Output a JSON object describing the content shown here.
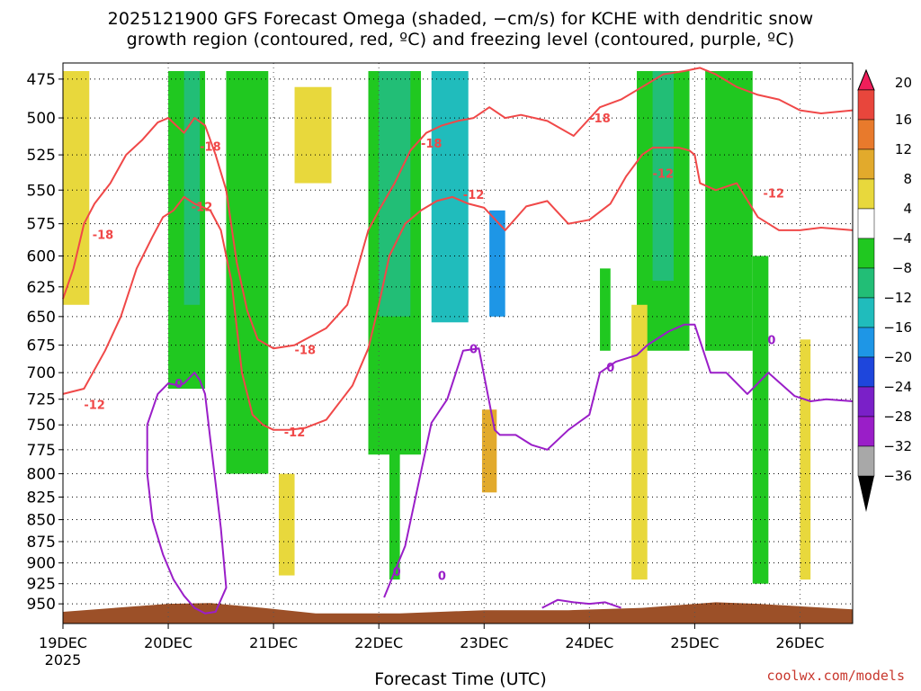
{
  "title_line1": "2025121900 GFS Forecast Omega (shaded, −cm/s) for KCHE with dendritic snow",
  "title_line2": "growth region (contoured, red, ºC) and freezing level (contoured, purple, ºC)",
  "credit": "coolwx.com/models",
  "chart_data": {
    "type": "heatmap",
    "title": "2025121900 GFS Forecast Omega (shaded, −cm/s) for KCHE with dendritic snow growth region (contoured, red, ºC) and freezing level (contoured, purple, ºC)",
    "xlabel": "Forecast Time (UTC)",
    "ylabel": "",
    "x_ticks": [
      "19DEC",
      "20DEC",
      "21DEC",
      "22DEC",
      "23DEC",
      "24DEC",
      "25DEC",
      "26DEC"
    ],
    "x_tick_sub": "2025",
    "xlim_days": [
      0,
      7.5
    ],
    "y_ticks": [
      475,
      500,
      525,
      550,
      575,
      600,
      625,
      650,
      675,
      700,
      725,
      750,
      775,
      800,
      825,
      850,
      875,
      900,
      925,
      950
    ],
    "ylim_hpa": [
      465,
      975
    ],
    "y_axis_log": true,
    "grid": true,
    "colorbar": {
      "labels": [
        "20",
        "16",
        "12",
        "8",
        "4",
        "−4",
        "−8",
        "−12",
        "−16",
        "−20",
        "−24",
        "−28",
        "−32",
        "−36"
      ],
      "colors": [
        "#f01e5a",
        "#e8463c",
        "#e87a2c",
        "#e2aa2c",
        "#e8d83c",
        "#ffffff",
        "#20c820",
        "#22be76",
        "#20bcbc",
        "#1e96e6",
        "#1e46dc",
        "#7a20c8",
        "#9a1ec8",
        "#a8a8a8",
        "#000000"
      ]
    },
    "omega_regions": [
      {
        "level": "-4",
        "day0": 1.0,
        "day1": 1.35,
        "p0": 470,
        "p1": 715
      },
      {
        "level": "-4",
        "day0": 1.55,
        "day1": 1.95,
        "p0": 470,
        "p1": 800
      },
      {
        "level": "-8",
        "day0": 1.15,
        "day1": 1.3,
        "p0": 470,
        "p1": 640
      },
      {
        "level": "-4",
        "day0": 2.9,
        "day1": 3.4,
        "p0": 470,
        "p1": 780
      },
      {
        "level": "-4",
        "day0": 3.55,
        "day1": 3.7,
        "p0": 470,
        "p1": 610
      },
      {
        "level": "-4",
        "day0": 3.1,
        "day1": 3.2,
        "p0": 690,
        "p1": 920
      },
      {
        "level": "-8",
        "day0": 3.0,
        "day1": 3.3,
        "p0": 470,
        "p1": 650
      },
      {
        "level": "-12",
        "day0": 3.5,
        "day1": 3.85,
        "p0": 470,
        "p1": 655
      },
      {
        "level": "-16",
        "day0": 4.05,
        "day1": 4.2,
        "p0": 565,
        "p1": 650
      },
      {
        "level": "-4",
        "day0": 5.45,
        "day1": 5.95,
        "p0": 470,
        "p1": 680
      },
      {
        "level": "-8",
        "day0": 5.6,
        "day1": 5.8,
        "p0": 470,
        "p1": 620
      },
      {
        "level": "-4",
        "day0": 6.1,
        "day1": 6.55,
        "p0": 470,
        "p1": 680
      },
      {
        "level": "-4",
        "day0": 6.55,
        "day1": 6.7,
        "p0": 600,
        "p1": 925
      },
      {
        "level": "-4",
        "day0": 5.1,
        "day1": 5.2,
        "p0": 610,
        "p1": 680
      }
    ],
    "positive_regions": [
      {
        "level": "4",
        "day0": 0.0,
        "day1": 0.25,
        "p0": 470,
        "p1": 640
      },
      {
        "level": "4",
        "day0": 2.2,
        "day1": 2.55,
        "p0": 480,
        "p1": 545
      },
      {
        "level": "4",
        "day0": 5.4,
        "day1": 5.55,
        "p0": 640,
        "p1": 920
      },
      {
        "level": "4",
        "day0": 7.0,
        "day1": 7.1,
        "p0": 670,
        "p1": 920
      },
      {
        "level": "8",
        "day0": 3.98,
        "day1": 4.12,
        "p0": 735,
        "p1": 820
      },
      {
        "level": "4",
        "day0": 2.05,
        "day1": 2.2,
        "p0": 800,
        "p1": 915
      }
    ],
    "series": [
      {
        "name": "-18",
        "color": "#f04848",
        "x_days": [
          0,
          0.1,
          0.2,
          0.3,
          0.45,
          0.6,
          0.75,
          0.9,
          1.0,
          1.15,
          1.25,
          1.35,
          1.45,
          1.55,
          1.65,
          1.75,
          1.85,
          2.0,
          2.2,
          2.5,
          2.7,
          2.9,
          3.0,
          3.15,
          3.3,
          3.45,
          3.6,
          3.75,
          3.9,
          4.05,
          4.2,
          4.35,
          4.6,
          4.85,
          5.1,
          5.3,
          5.5,
          5.7,
          5.9,
          6.05,
          6.2,
          6.4,
          6.6,
          6.8,
          7.0,
          7.2,
          7.5
        ],
        "y_hpa": [
          635,
          610,
          575,
          560,
          545,
          525,
          515,
          503,
          500,
          510,
          500,
          505,
          525,
          550,
          605,
          645,
          670,
          678,
          675,
          660,
          640,
          580,
          565,
          545,
          522,
          510,
          505,
          502,
          500,
          493,
          500,
          498,
          502,
          512,
          493,
          488,
          480,
          472,
          470,
          468,
          472,
          480,
          485,
          488,
          495,
          497,
          495
        ]
      },
      {
        "name": "-12",
        "color": "#f04848",
        "x_days": [
          0,
          0.2,
          0.4,
          0.55,
          0.7,
          0.85,
          0.95,
          1.05,
          1.15,
          1.25,
          1.4,
          1.5,
          1.6,
          1.7,
          1.8,
          1.9,
          2.0,
          2.15,
          2.3,
          2.5,
          2.75,
          2.9,
          3.0,
          3.1,
          3.25,
          3.4,
          3.55,
          3.7,
          3.85,
          4.0,
          4.2,
          4.4,
          4.6,
          4.8,
          5.0,
          5.2,
          5.35,
          5.5,
          5.6,
          5.7,
          5.85,
          5.95,
          6.0,
          6.05,
          6.2,
          6.4,
          6.6,
          6.8,
          7.0,
          7.2,
          7.5
        ],
        "y_hpa": [
          720,
          715,
          680,
          650,
          610,
          585,
          570,
          565,
          555,
          560,
          565,
          580,
          620,
          700,
          740,
          750,
          755,
          755,
          753,
          745,
          712,
          678,
          640,
          600,
          575,
          565,
          558,
          555,
          560,
          563,
          580,
          562,
          558,
          575,
          572,
          560,
          540,
          525,
          520,
          520,
          520,
          522,
          525,
          545,
          550,
          545,
          570,
          580,
          580,
          578,
          580
        ]
      },
      {
        "name": "0",
        "color": "#9a1ec8",
        "x_days": [
          0.8,
          0.9,
          1.0,
          1.1,
          1.15,
          1.25,
          1.3,
          1.35,
          1.4,
          1.45,
          1.5,
          1.55,
          1.45,
          1.35,
          1.25,
          1.15,
          1.05,
          0.95,
          0.85,
          0.8,
          0.8
        ],
        "y_hpa": [
          750,
          720,
          710,
          712,
          710,
          700,
          707,
          720,
          765,
          810,
          860,
          930,
          960,
          962,
          955,
          940,
          920,
          890,
          850,
          800,
          750
        ]
      },
      {
        "name": "0 (main)",
        "color": "#9a1ec8",
        "x_days": [
          3.05,
          3.25,
          3.5,
          3.65,
          3.8,
          3.95,
          4.1,
          4.15,
          4.3,
          4.45,
          4.6,
          4.8,
          5.0,
          5.1,
          5.25,
          5.45,
          5.55,
          5.75,
          5.9,
          6.0,
          6.15,
          6.3,
          6.5,
          6.7,
          6.95,
          7.1,
          7.25,
          7.5
        ],
        "y_hpa": [
          942,
          880,
          748,
          725,
          680,
          678,
          755,
          760,
          760,
          770,
          775,
          755,
          740,
          700,
          690,
          684,
          675,
          663,
          657,
          657,
          700,
          700,
          720,
          700,
          722,
          727,
          725,
          727
        ]
      },
      {
        "name": "0 (lower)",
        "color": "#9a1ec8",
        "x_days": [
          4.55,
          4.7,
          4.85,
          5.0,
          5.15,
          5.3
        ],
        "y_hpa": [
          955,
          945,
          948,
          950,
          948,
          955
        ]
      }
    ],
    "contour_labels": [
      {
        "text": "-18",
        "day": 0.38,
        "p": 583
      },
      {
        "text": "-18",
        "day": 1.4,
        "p": 519
      },
      {
        "text": "-12",
        "day": 1.32,
        "p": 562
      },
      {
        "text": "-18",
        "day": 2.3,
        "p": 679
      },
      {
        "text": "-12",
        "day": 2.2,
        "p": 757
      },
      {
        "text": "-12",
        "day": 0.3,
        "p": 730
      },
      {
        "text": "-18",
        "day": 3.5,
        "p": 517
      },
      {
        "text": "-12",
        "day": 3.9,
        "p": 553
      },
      {
        "text": "-18",
        "day": 5.1,
        "p": 500
      },
      {
        "text": "-12",
        "day": 5.7,
        "p": 538
      },
      {
        "text": "-12",
        "day": 6.75,
        "p": 552
      },
      {
        "text": "0",
        "day": 1.1,
        "p": 710
      },
      {
        "text": "0",
        "day": 3.9,
        "p": 678
      },
      {
        "text": "0",
        "day": 5.2,
        "p": 695
      },
      {
        "text": "0",
        "day": 6.73,
        "p": 670
      },
      {
        "text": "0",
        "day": 3.17,
        "p": 910
      },
      {
        "text": "0",
        "day": 3.6,
        "p": 915
      }
    ]
  }
}
